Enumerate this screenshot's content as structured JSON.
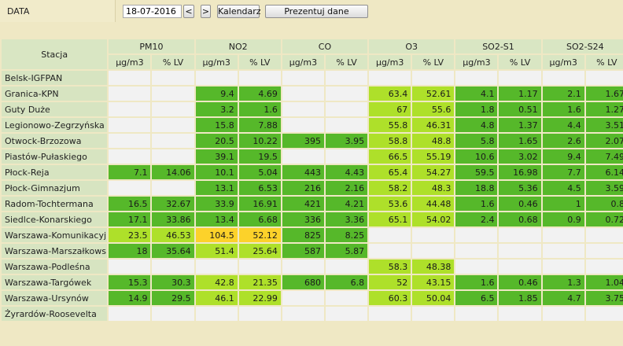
{
  "toolbar": {
    "label": "DATA",
    "date_value": "18-07-2016",
    "prev_label": "<",
    "next_label": ">",
    "calendar_label": "Kalendarz",
    "present_label": "Prezentuj dane"
  },
  "table": {
    "station_header": "Stacja",
    "groups": [
      "PM10",
      "NO2",
      "CO",
      "O3",
      "SO2-S1",
      "SO2-S24"
    ],
    "subheaders": [
      "µg/m3",
      "% LV"
    ],
    "colors": {
      "green": "#56b82a",
      "light_green": "#aee02a",
      "yellow": "#fcd22a",
      "empty": "#f2f2f2"
    },
    "rows": [
      {
        "station": "Belsk-IGFPAN",
        "cells": [
          [
            "",
            ""
          ],
          [
            "",
            ""
          ],
          [
            "",
            ""
          ],
          [
            "",
            ""
          ],
          [
            "",
            ""
          ],
          [
            "",
            ""
          ]
        ],
        "levels": [
          "e",
          "e",
          "e",
          "e",
          "e",
          "e"
        ]
      },
      {
        "station": "Granica-KPN",
        "cells": [
          [
            "",
            ""
          ],
          [
            "9.4",
            "4.69"
          ],
          [
            "",
            ""
          ],
          [
            "63.4",
            "52.61"
          ],
          [
            "4.1",
            "1.17"
          ],
          [
            "2.1",
            "1.67"
          ]
        ],
        "levels": [
          "e",
          "g",
          "e",
          "lg",
          "g",
          "g"
        ]
      },
      {
        "station": "Guty Duże",
        "cells": [
          [
            "",
            ""
          ],
          [
            "3.2",
            "1.6"
          ],
          [
            "",
            ""
          ],
          [
            "67",
            "55.6"
          ],
          [
            "1.8",
            "0.51"
          ],
          [
            "1.6",
            "1.27"
          ]
        ],
        "levels": [
          "e",
          "g",
          "e",
          "lg",
          "g",
          "g"
        ]
      },
      {
        "station": "Legionowo-Zegrzyńska",
        "cells": [
          [
            "",
            ""
          ],
          [
            "15.8",
            "7.88"
          ],
          [
            "",
            ""
          ],
          [
            "55.8",
            "46.31"
          ],
          [
            "4.8",
            "1.37"
          ],
          [
            "4.4",
            "3.51"
          ]
        ],
        "levels": [
          "e",
          "g",
          "e",
          "lg",
          "g",
          "g"
        ]
      },
      {
        "station": "Otwock-Brzozowa",
        "cells": [
          [
            "",
            ""
          ],
          [
            "20.5",
            "10.22"
          ],
          [
            "395",
            "3.95"
          ],
          [
            "58.8",
            "48.8"
          ],
          [
            "5.8",
            "1.65"
          ],
          [
            "2.6",
            "2.07"
          ]
        ],
        "levels": [
          "e",
          "g",
          "g",
          "lg",
          "g",
          "g"
        ]
      },
      {
        "station": "Piastów-Pułaskiego",
        "cells": [
          [
            "",
            ""
          ],
          [
            "39.1",
            "19.5"
          ],
          [
            "",
            ""
          ],
          [
            "66.5",
            "55.19"
          ],
          [
            "10.6",
            "3.02"
          ],
          [
            "9.4",
            "7.49"
          ]
        ],
        "levels": [
          "e",
          "g",
          "e",
          "lg",
          "g",
          "g"
        ]
      },
      {
        "station": "Płock-Reja",
        "cells": [
          [
            "7.1",
            "14.06"
          ],
          [
            "10.1",
            "5.04"
          ],
          [
            "443",
            "4.43"
          ],
          [
            "65.4",
            "54.27"
          ],
          [
            "59.5",
            "16.98"
          ],
          [
            "7.7",
            "6.14"
          ]
        ],
        "levels": [
          "g",
          "g",
          "g",
          "lg",
          "g",
          "g"
        ]
      },
      {
        "station": "Płock-Gimnazjum",
        "cells": [
          [
            "",
            ""
          ],
          [
            "13.1",
            "6.53"
          ],
          [
            "216",
            "2.16"
          ],
          [
            "58.2",
            "48.3"
          ],
          [
            "18.8",
            "5.36"
          ],
          [
            "4.5",
            "3.59"
          ]
        ],
        "levels": [
          "e",
          "g",
          "g",
          "lg",
          "g",
          "g"
        ]
      },
      {
        "station": "Radom-Tochtermana",
        "cells": [
          [
            "16.5",
            "32.67"
          ],
          [
            "33.9",
            "16.91"
          ],
          [
            "421",
            "4.21"
          ],
          [
            "53.6",
            "44.48"
          ],
          [
            "1.6",
            "0.46"
          ],
          [
            "1",
            "0.8"
          ]
        ],
        "levels": [
          "g",
          "g",
          "g",
          "lg",
          "g",
          "g"
        ]
      },
      {
        "station": "Siedlce-Konarskiego",
        "cells": [
          [
            "17.1",
            "33.86"
          ],
          [
            "13.4",
            "6.68"
          ],
          [
            "336",
            "3.36"
          ],
          [
            "65.1",
            "54.02"
          ],
          [
            "2.4",
            "0.68"
          ],
          [
            "0.9",
            "0.72"
          ]
        ],
        "levels": [
          "g",
          "g",
          "g",
          "lg",
          "g",
          "g"
        ]
      },
      {
        "station": "Warszawa-Komunikacyjna",
        "cells": [
          [
            "23.5",
            "46.53"
          ],
          [
            "104.5",
            "52.12"
          ],
          [
            "825",
            "8.25"
          ],
          [
            "",
            ""
          ],
          [
            "",
            ""
          ],
          [
            "",
            ""
          ]
        ],
        "levels": [
          "lg",
          "y",
          "g",
          "e",
          "e",
          "e"
        ]
      },
      {
        "station": "Warszawa-Marszałkowska",
        "cells": [
          [
            "18",
            "35.64"
          ],
          [
            "51.4",
            "25.64"
          ],
          [
            "587",
            "5.87"
          ],
          [
            "",
            ""
          ],
          [
            "",
            ""
          ],
          [
            "",
            ""
          ]
        ],
        "levels": [
          "g",
          "lg",
          "g",
          "e",
          "e",
          "e"
        ]
      },
      {
        "station": "Warszawa-Podleśna",
        "cells": [
          [
            "",
            ""
          ],
          [
            "",
            ""
          ],
          [
            "",
            ""
          ],
          [
            "58.3",
            "48.38"
          ],
          [
            "",
            ""
          ],
          [
            "",
            ""
          ]
        ],
        "levels": [
          "e",
          "e",
          "e",
          "lg",
          "e",
          "e"
        ]
      },
      {
        "station": "Warszawa-Targówek",
        "cells": [
          [
            "15.3",
            "30.3"
          ],
          [
            "42.8",
            "21.35"
          ],
          [
            "680",
            "6.8"
          ],
          [
            "52",
            "43.15"
          ],
          [
            "1.6",
            "0.46"
          ],
          [
            "1.3",
            "1.04"
          ]
        ],
        "levels": [
          "g",
          "lg",
          "g",
          "lg",
          "g",
          "g"
        ]
      },
      {
        "station": "Warszawa-Ursynów",
        "cells": [
          [
            "14.9",
            "29.5"
          ],
          [
            "46.1",
            "22.99"
          ],
          [
            "",
            ""
          ],
          [
            "60.3",
            "50.04"
          ],
          [
            "6.5",
            "1.85"
          ],
          [
            "4.7",
            "3.75"
          ]
        ],
        "levels": [
          "g",
          "lg",
          "e",
          "lg",
          "g",
          "g"
        ]
      },
      {
        "station": "Żyrardów-Roosevelta",
        "cells": [
          [
            "",
            ""
          ],
          [
            "",
            ""
          ],
          [
            "",
            ""
          ],
          [
            "",
            ""
          ],
          [
            "",
            ""
          ],
          [
            "",
            ""
          ]
        ],
        "levels": [
          "e",
          "e",
          "e",
          "e",
          "e",
          "e"
        ]
      }
    ]
  }
}
